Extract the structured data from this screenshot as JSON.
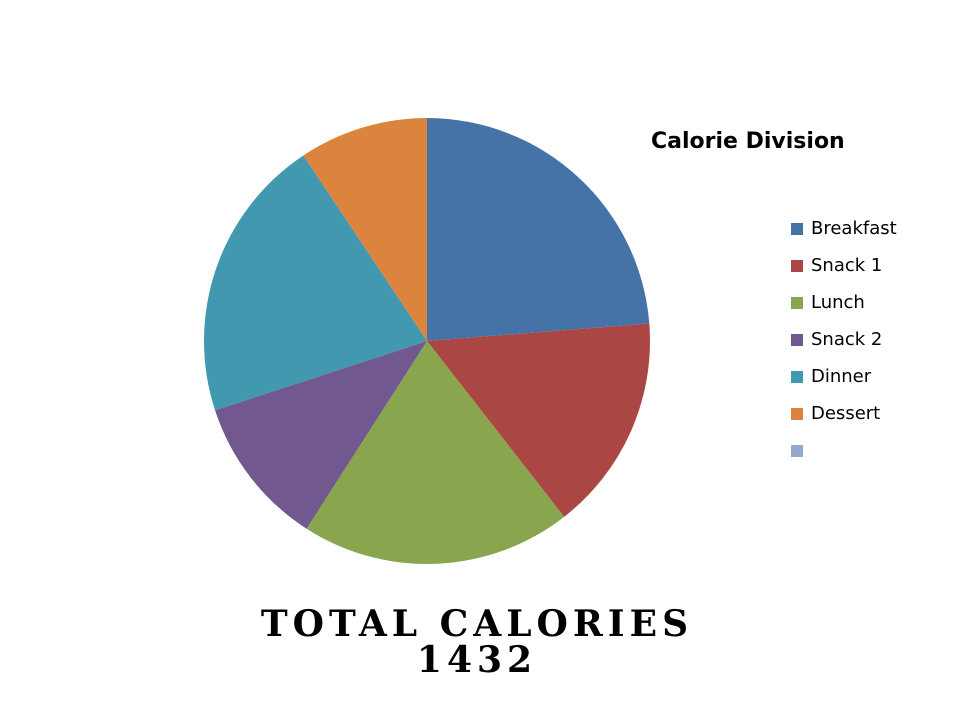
{
  "chart_data": {
    "type": "pie",
    "title": "Calorie Division",
    "categories": [
      "Breakfast",
      "Snack 1",
      "Lunch",
      "Snack 2",
      "Dinner",
      "Dessert",
      null
    ],
    "values": [
      340,
      225,
      281,
      156,
      296,
      134,
      null
    ],
    "colors": [
      "#4572a7",
      "#aa4643",
      "#89a54e",
      "#71588f",
      "#4198af",
      "#db843d",
      "#93a9cf"
    ],
    "annotations": [
      "TOTAL CALORIES",
      "1432"
    ]
  }
}
